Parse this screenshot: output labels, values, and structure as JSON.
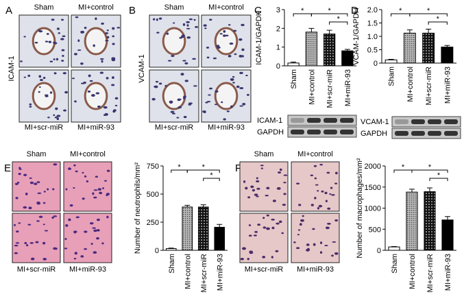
{
  "panels": [
    {
      "label": "A",
      "side_label": "ICAM-1",
      "image_labels": [
        "Sham",
        "MI+control",
        "MI+scr-miR",
        "MI+miR-93"
      ]
    },
    {
      "label": "B",
      "side_label": "VCAM-1",
      "image_labels": [
        "Sham",
        "MI+control",
        "MI+scr-miR",
        "MI+miR-93"
      ]
    },
    {
      "label": "C",
      "blot_labels": [
        "ICAM-1",
        "GAPDH"
      ]
    },
    {
      "label": "D",
      "blot_labels": [
        "VCAM-1",
        "GAPDH"
      ]
    },
    {
      "label": "E",
      "image_labels": [
        "Sham",
        "MI+control",
        "MI+scr-miR",
        "MI+miR-93"
      ]
    },
    {
      "label": "F",
      "image_labels": [
        "Sham",
        "MI+control",
        "MI+scr-miR",
        "MI+miR-93"
      ]
    }
  ],
  "chart_data": [
    {
      "type": "bar",
      "y_label": "ICAM-1/GAPDH",
      "categories": [
        "Sham",
        "MI+control",
        "MI+scr-miR",
        "MI+miR-93"
      ],
      "values": [
        0.15,
        1.8,
        1.7,
        0.8
      ],
      "errors": [
        0.05,
        0.2,
        0.2,
        0.08
      ],
      "colors": [
        "#ffffff",
        "#8c8c8c",
        "#333333",
        "#000000"
      ],
      "ylim": [
        0,
        3
      ],
      "yticks": [
        0,
        1,
        2,
        3
      ],
      "significance": [
        "*",
        "*",
        "*"
      ]
    },
    {
      "type": "bar",
      "y_label": "VCAM-1/GAPDH",
      "categories": [
        "Sham",
        "MI+control",
        "MI+scr-miR",
        "MI+miR-93"
      ],
      "values": [
        0.12,
        1.12,
        1.12,
        0.6
      ],
      "errors": [
        0.02,
        0.12,
        0.15,
        0.06
      ],
      "colors": [
        "#ffffff",
        "#8c8c8c",
        "#333333",
        "#000000"
      ],
      "ylim": [
        0,
        2
      ],
      "yticks": [
        0,
        0.5,
        {
          "value": 1,
          "label": "1.0"
        },
        1.5,
        {
          "value": 2,
          "label": "2.0"
        }
      ],
      "significance": [
        "*",
        "*",
        "*"
      ]
    },
    {
      "type": "bar",
      "y_label": "Number of neutrophils/mm²",
      "categories": [
        "Sham",
        "MI+control",
        "MI+scr-miR",
        "MI+miR-93"
      ],
      "values": [
        15,
        385,
        385,
        205
      ],
      "errors": [
        5,
        15,
        20,
        25
      ],
      "colors": [
        "#ffffff",
        "#8c8c8c",
        "#333333",
        "#000000"
      ],
      "ylim": [
        0,
        750
      ],
      "yticks": [
        0,
        250,
        500,
        750
      ],
      "significance": [
        "*",
        "*",
        "*"
      ]
    },
    {
      "type": "bar",
      "y_label": "Number of macrophages/mm²",
      "categories": [
        "Sham",
        "MI+control",
        "MI+scr-miR",
        "MI+miR-93"
      ],
      "values": [
        80,
        1380,
        1390,
        720
      ],
      "errors": [
        10,
        70,
        90,
        80
      ],
      "colors": [
        "#ffffff",
        "#8c8c8c",
        "#333333",
        "#000000"
      ],
      "ylim": [
        0,
        2000
      ],
      "yticks": [
        0,
        500,
        1000,
        1500,
        2000
      ],
      "significance": [
        "*",
        "*",
        "*"
      ]
    }
  ]
}
